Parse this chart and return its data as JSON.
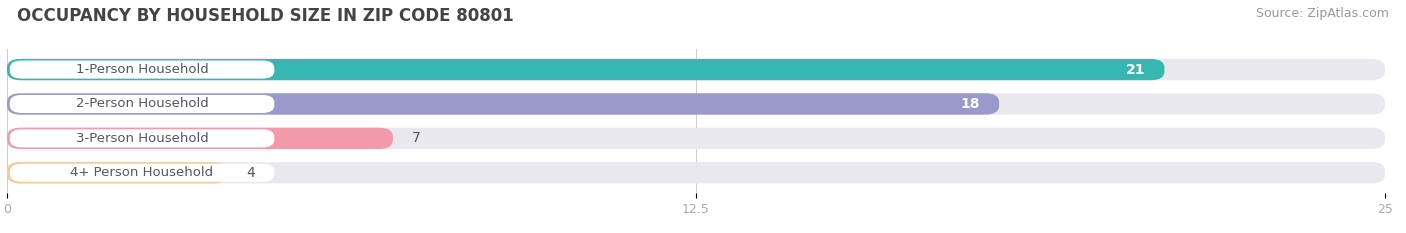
{
  "title": "OCCUPANCY BY HOUSEHOLD SIZE IN ZIP CODE 80801",
  "source": "Source: ZipAtlas.com",
  "categories": [
    "1-Person Household",
    "2-Person Household",
    "3-Person Household",
    "4+ Person Household"
  ],
  "values": [
    21,
    18,
    7,
    4
  ],
  "bar_colors": [
    "#35b8b2",
    "#9999cc",
    "#f299aa",
    "#f5c896"
  ],
  "bar_bg_color": "#e8e8ee",
  "label_bg_color": "#ffffff",
  "xlim": [
    0,
    25
  ],
  "xticks": [
    0,
    12.5,
    25
  ],
  "title_fontsize": 12,
  "source_fontsize": 9,
  "label_fontsize": 9.5,
  "value_fontsize": 9,
  "background_color": "#ffffff"
}
